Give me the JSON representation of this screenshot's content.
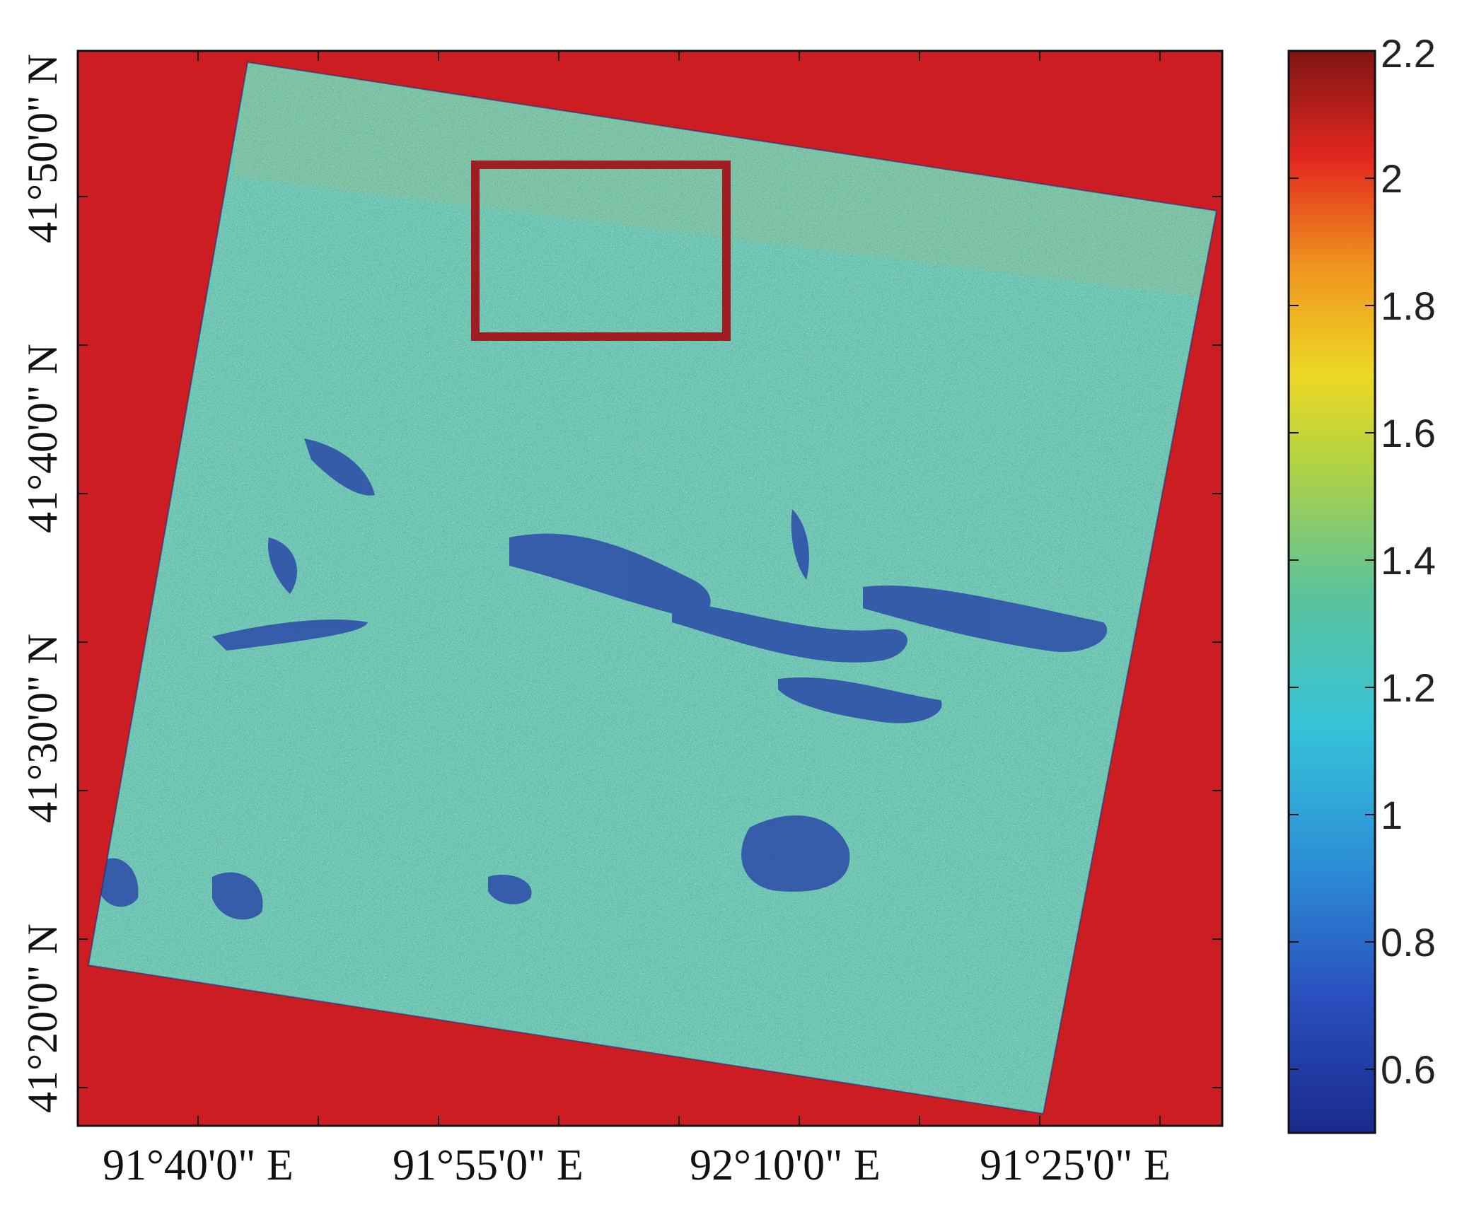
{
  "map": {
    "background_color": "#cc1e22",
    "highlight_box_color": "#a01e22",
    "latitude_labels": [
      "41°50'0\" N",
      "41°40'0\" N",
      "41°30'0\" N",
      "41°20'0\" N"
    ],
    "longitude_labels": [
      "91°40'0\" E",
      "91°55'0\" E",
      "92°10'0\" E",
      "91°25'0\" E"
    ]
  },
  "colorbar": {
    "min": 0.5,
    "max": 2.2,
    "tick_labels": [
      "2.2",
      "2",
      "1.8",
      "1.6",
      "1.4",
      "1.2",
      "1",
      "0.8",
      "0.6"
    ],
    "colormap": "jet"
  }
}
